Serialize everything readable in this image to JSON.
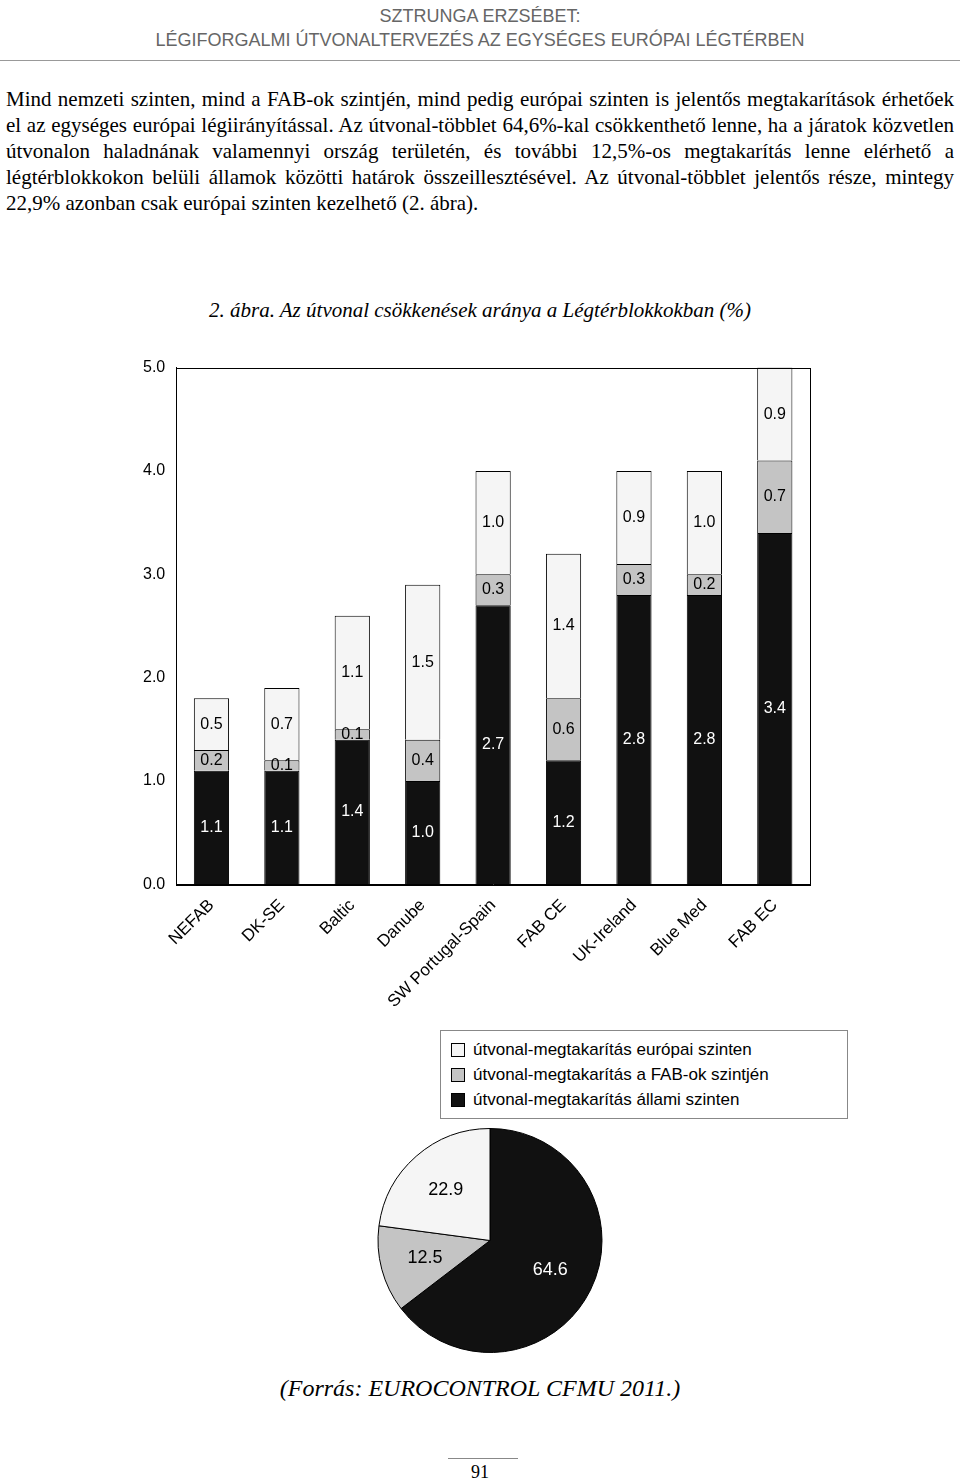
{
  "header": {
    "author": "SZTRUNGA ERZSÉBET:",
    "title": "LÉGIFORGALMI ÚTVONALTERVEZÉS AZ EGYSÉGES EURÓPAI LÉGTÉRBEN"
  },
  "paragraph": "Mind nemzeti szinten, mind a FAB-ok szintjén, mind pedig európai szinten is jelentős megtakarítások érhetőek el az egységes európai légiirányítással. Az útvonal-többlet 64,6%-kal csökkenthető lenne, ha a járatok közvetlen útvonalon haladnának valamennyi ország területén, és további 12,5%-os megtakarítás lenne elérhető a légtérblokkokon belüli államok közötti határok összeillesztésével. Az útvonal-többlet jelentős része, mintegy 22,9% azonban csak európai szinten kezelhető (2. ábra).",
  "caption": "2. ábra. Az útvonal csökkenések aránya a Légtérblokkokban (%)",
  "chart_data": [
    {
      "type": "bar",
      "stacked": true,
      "grid": false,
      "legend": "bottom",
      "data_labels": true,
      "categories": [
        "NEFAB",
        "DK-SE",
        "Baltic",
        "Danube",
        "SW Portugal-Spain",
        "FAB CE",
        "UK-Ireland",
        "Blue Med",
        "FAB EC"
      ],
      "series": [
        {
          "name": "útvonal-megtakarítás állami szinten",
          "color": "#111111",
          "values": [
            1.1,
            1.1,
            1.4,
            1.0,
            2.7,
            1.2,
            2.8,
            2.8,
            3.4
          ],
          "value_labels": [
            "1.1",
            "1.1",
            "1.4",
            "1.0",
            "2.7",
            "1.2",
            "2.8",
            "2.8",
            "3.4"
          ]
        },
        {
          "name": "útvonal-megtakarítás a FAB-ok szintjén",
          "color": "#c4c4c4",
          "values": [
            0.2,
            0.1,
            0.1,
            0.4,
            0.3,
            0.6,
            0.3,
            0.2,
            0.7
          ],
          "value_labels": [
            "0.2",
            "0.1",
            "0.1",
            "0.4",
            "0.3",
            "0.6",
            "0.3",
            "0.2",
            "0.7"
          ]
        },
        {
          "name": "útvonal-megtakarítás európai szinten",
          "color": "#f5f5f5",
          "values": [
            0.5,
            0.7,
            1.1,
            1.5,
            1.0,
            1.4,
            0.9,
            1.0,
            0.9
          ],
          "value_labels": [
            "0.5",
            "0.7",
            "1.1",
            "1.5",
            "1.0",
            "1.4",
            "0.9",
            "1.0",
            "0.9"
          ]
        }
      ],
      "ylim": [
        0,
        5
      ],
      "yticks": [
        {
          "value": 0,
          "label": "0.0"
        },
        {
          "value": 1,
          "label": "1.0"
        },
        {
          "value": 2,
          "label": "2.0"
        },
        {
          "value": 3,
          "label": "3.0"
        },
        {
          "value": 4,
          "label": "4.0"
        },
        {
          "value": 5,
          "label": "5.0"
        }
      ]
    },
    {
      "type": "pie",
      "data_labels": true,
      "values": [
        64.6,
        12.5,
        22.9
      ],
      "colors": [
        "#111111",
        "#c4c4c4",
        "#f5f5f5"
      ]
    }
  ],
  "source": "(Forrás: EUROCONTROL CFMU 2011.)",
  "page_number": 91
}
